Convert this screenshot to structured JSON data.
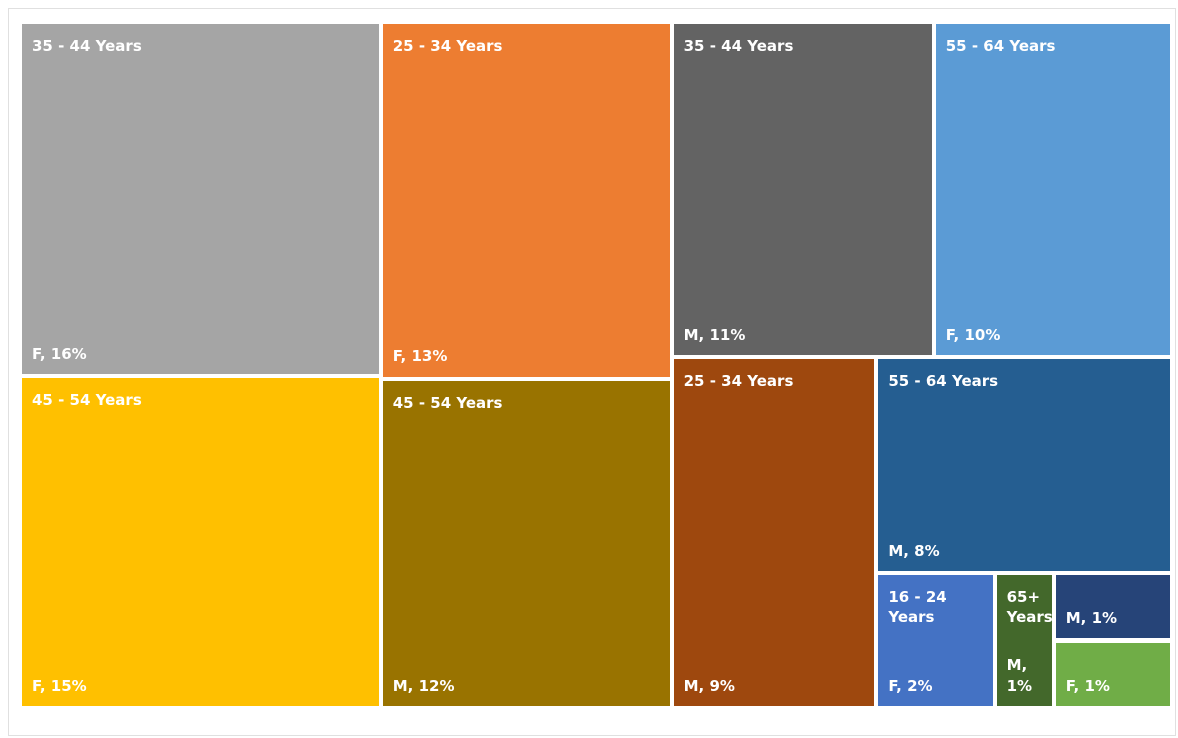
{
  "chart_data": {
    "type": "treemap",
    "categories": [
      "35 - 44 Years",
      "45 - 54 Years",
      "25 - 34 Years",
      "45 - 54 Years",
      "35 - 44 Years",
      "55 - 64 Years",
      "25 - 34 Years",
      "55 - 64 Years",
      "16 - 24 Years",
      "65+ Years",
      null,
      null
    ],
    "values": [
      16,
      15,
      13,
      12,
      11,
      10,
      9,
      8,
      2,
      1,
      1,
      1
    ],
    "value_labels": [
      "F, 16%",
      "F, 15%",
      "F, 13%",
      "M, 12%",
      "M, 11%",
      "F, 10%",
      "M, 9%",
      "M, 8%",
      "F, 2%",
      "M, 1%",
      "M, 1%",
      "F, 1%"
    ],
    "colors": [
      "#a5a5a5",
      "#ffc000",
      "#ed7d31",
      "#997300",
      "#636363",
      "#5b9bd5",
      "#9e480e",
      "#255e91",
      "#4472c4",
      "#43682b",
      "#264478",
      "#70ad47"
    ]
  }
}
